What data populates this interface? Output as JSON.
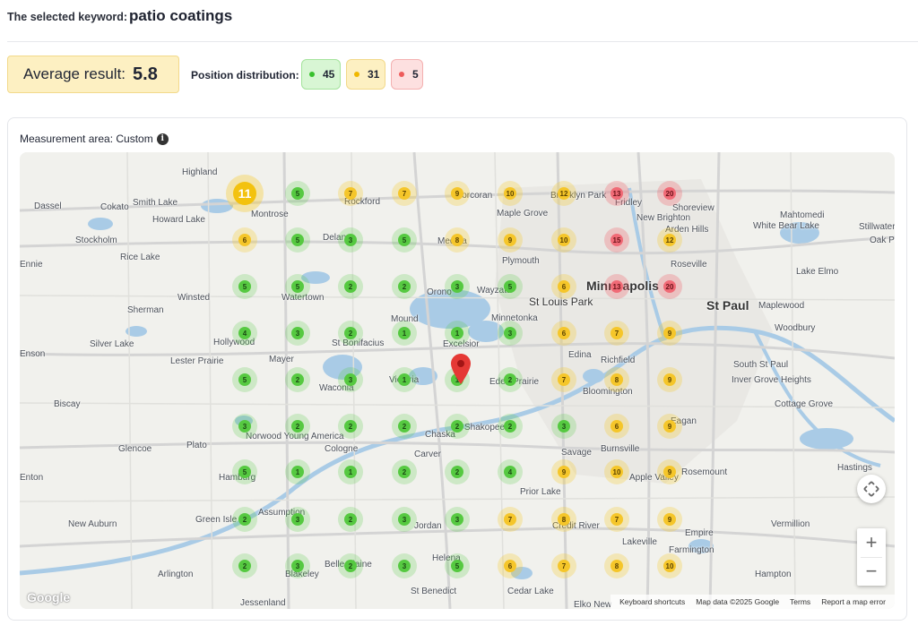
{
  "header": {
    "keyword_label": "The selected keyword:",
    "keyword": "patio coatings"
  },
  "summary": {
    "average_label": "Average result:",
    "average_value": "5.8",
    "distribution_label": "Position distribution:",
    "distribution": {
      "green": "45",
      "yellow": "31",
      "red": "5"
    }
  },
  "map_panel": {
    "area_label": "Measurement area: Custom",
    "info_icon": "info-icon",
    "controls": {
      "fullscreen_icon": "fullscreen-icon",
      "zoom_in": "+",
      "zoom_out": "−"
    },
    "logo": "Google",
    "attribution": [
      "Keyboard shortcuts",
      "Map data ©2025 Google",
      "Terms",
      "Report a map error"
    ],
    "colors": {
      "green": "#56c941",
      "yellow": "#f5c62a",
      "red": "#f06a76",
      "pin": "#e53935"
    },
    "places": [
      "Highland",
      "Dassel",
      "Cokato",
      "Smith Lake",
      "Montrose",
      "Howard Lake",
      "Stockholm",
      "Rice Lake",
      "Winsted",
      "Sherman",
      "Silver Lake",
      "Hollywood",
      "Lester Prairie",
      "Mayer",
      "Biscay",
      "Glencoe",
      "Plato",
      "Norwood Young America",
      "Hamburg",
      "Green Isle",
      "Assumption",
      "New Auburn",
      "Arlington",
      "Jessenland",
      "Blakeley",
      "Belle Plaine",
      "St Benedict",
      "Helena",
      "Jordan",
      "Cologne",
      "Carver",
      "Chaska",
      "Shakopee",
      "Waconia",
      "Victoria",
      "St Bonifacius",
      "Mound",
      "Excelsior",
      "Minnetonka",
      "Wayzata",
      "Orono",
      "Watertown",
      "Delano",
      "Medina",
      "Rockford",
      "Corcoran",
      "Maple Grove",
      "Plymouth",
      "Brooklyn Park",
      "Fridley",
      "Shoreview",
      "New Brighton",
      "Arden Hills",
      "Roseville",
      "Mahtomedi",
      "White Bear Lake",
      "Stillwater",
      "Oak Park",
      "Lake Elmo",
      "Minneapolis",
      "St Louis Park",
      "St Paul",
      "Maplewood",
      "Woodbury",
      "Edina",
      "Richfield",
      "Eden Prairie",
      "Bloomington",
      "South St Paul",
      "Inver Grove Heights",
      "Cottage Grove",
      "Eagan",
      "Savage",
      "Burnsville",
      "Apple Valley",
      "Rosemount",
      "Hastings",
      "Prior Lake",
      "Credit River",
      "Lakeville",
      "Empire",
      "Farmington",
      "Vermillion",
      "Hampton",
      "Cedar Lake",
      "Elko New",
      "Ennie",
      "Enson",
      "Enton"
    ],
    "grid_ranks": [
      [
        11,
        5,
        7,
        7,
        9,
        10,
        12,
        13,
        20
      ],
      [
        6,
        5,
        3,
        5,
        8,
        9,
        10,
        15,
        12
      ],
      [
        5,
        5,
        2,
        2,
        3,
        5,
        6,
        13,
        20
      ],
      [
        4,
        3,
        2,
        1,
        1,
        3,
        6,
        7,
        9
      ],
      [
        5,
        2,
        3,
        1,
        1,
        2,
        7,
        8,
        9
      ],
      [
        3,
        2,
        2,
        2,
        2,
        2,
        3,
        6,
        9
      ],
      [
        5,
        1,
        1,
        2,
        2,
        4,
        9,
        10,
        9
      ],
      [
        2,
        3,
        2,
        3,
        3,
        7,
        8,
        7,
        9
      ],
      [
        2,
        3,
        2,
        3,
        5,
        6,
        7,
        8,
        10
      ]
    ]
  }
}
